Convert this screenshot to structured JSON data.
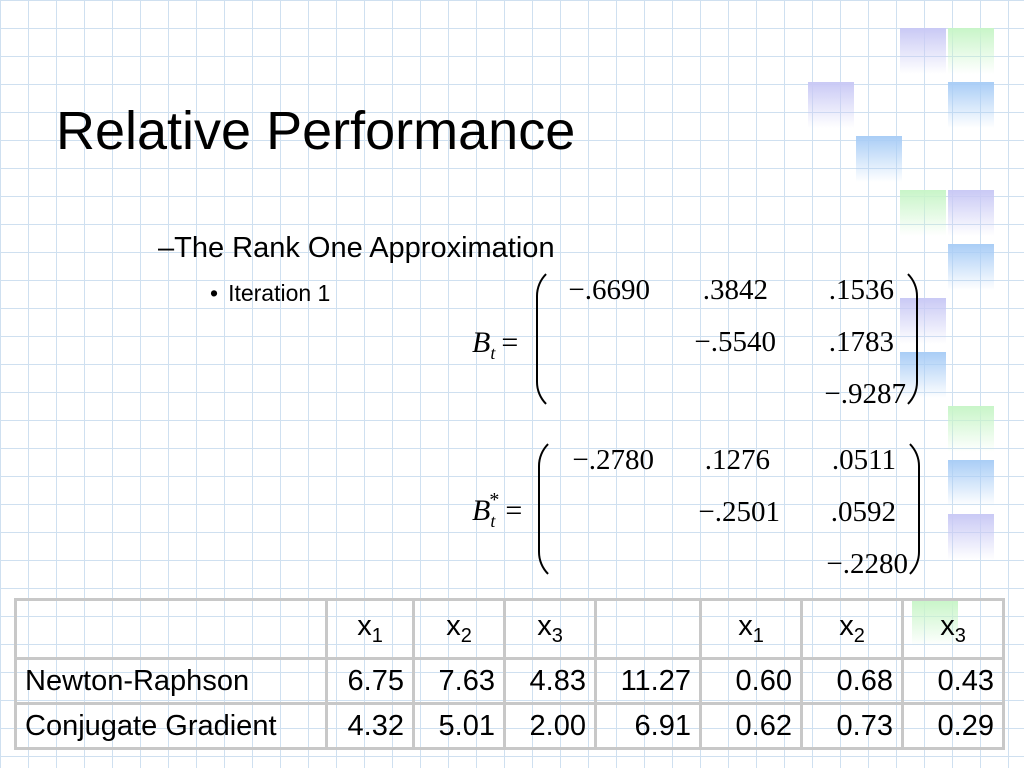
{
  "slide": {
    "title": "Relative Performance",
    "subheading": "The Rank One Approximation",
    "subheading_marker": "–",
    "bullet": "Iteration 1",
    "bullet_marker": "•"
  },
  "matrix_bt": {
    "label": "B",
    "subscript": "t",
    "equals": "=",
    "rows": [
      [
        "−.6690",
        ".3842",
        ".1536"
      ],
      [
        "",
        "−.5540",
        ".1783"
      ],
      [
        "",
        "",
        "−.9287"
      ]
    ]
  },
  "matrix_bt_star": {
    "label": "B",
    "subscript": "t",
    "superscript": "*",
    "equals": "=",
    "rows": [
      [
        "−.2780",
        ".1276",
        ".0511"
      ],
      [
        "",
        "−.2501",
        ".0592"
      ],
      [
        "",
        "",
        "−.2280"
      ]
    ]
  },
  "table": {
    "header": [
      {
        "var": "x",
        "sub": "1"
      },
      {
        "var": "x",
        "sub": "2"
      },
      {
        "var": "x",
        "sub": "3"
      },
      {
        "var": "",
        "sub": ""
      },
      {
        "var": "x",
        "sub": "1"
      },
      {
        "var": "x",
        "sub": "2"
      },
      {
        "var": "x",
        "sub": "3"
      }
    ],
    "rows": [
      {
        "method": "Newton-Raphson",
        "values": [
          "6.75",
          "7.63",
          "4.83",
          "11.27",
          "0.60",
          "0.68",
          "0.43"
        ]
      },
      {
        "method": "Conjugate Gradient",
        "values": [
          "4.32",
          "5.01",
          "2.00",
          "6.91",
          "0.62",
          "0.73",
          "0.29"
        ]
      }
    ]
  }
}
